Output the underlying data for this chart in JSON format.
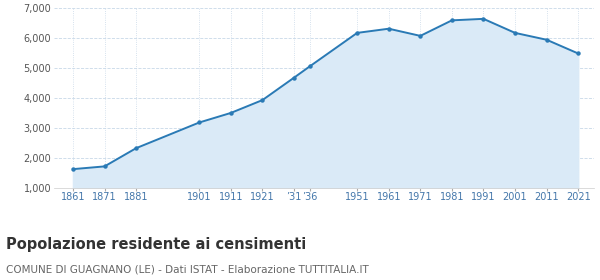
{
  "years": [
    1861,
    1871,
    1881,
    1901,
    1911,
    1921,
    1931,
    1936,
    1951,
    1961,
    1971,
    1981,
    1991,
    2001,
    2011,
    2021
  ],
  "population": [
    1618,
    1710,
    2320,
    3180,
    3500,
    3930,
    4680,
    5060,
    6180,
    6320,
    6080,
    6600,
    6650,
    6180,
    5950,
    5490
  ],
  "line_color": "#2a7ab5",
  "fill_color": "#daeaf7",
  "marker_color": "#2a7ab5",
  "bg_color": "#ffffff",
  "grid_color": "#c8d8e8",
  "ylim": [
    1000,
    7000
  ],
  "yticks": [
    1000,
    2000,
    3000,
    4000,
    5000,
    6000,
    7000
  ],
  "x_tick_positions": [
    1861,
    1871,
    1881,
    1901,
    1911,
    1921,
    1931,
    1936,
    1951,
    1961,
    1971,
    1981,
    1991,
    2001,
    2011,
    2021
  ],
  "x_tick_labels": [
    "1861",
    "1871",
    "1881",
    "1901",
    "1911",
    "1921",
    "’31",
    "’36",
    "1951",
    "1961",
    "1971",
    "1981",
    "1991",
    "2001",
    "2011",
    "2021"
  ],
  "title": "Popolazione residente ai censimenti",
  "subtitle": "COMUNE DI GUAGNANO (LE) - Dati ISTAT - Elaborazione TUTTITALIA.IT",
  "title_fontsize": 10.5,
  "subtitle_fontsize": 7.5
}
